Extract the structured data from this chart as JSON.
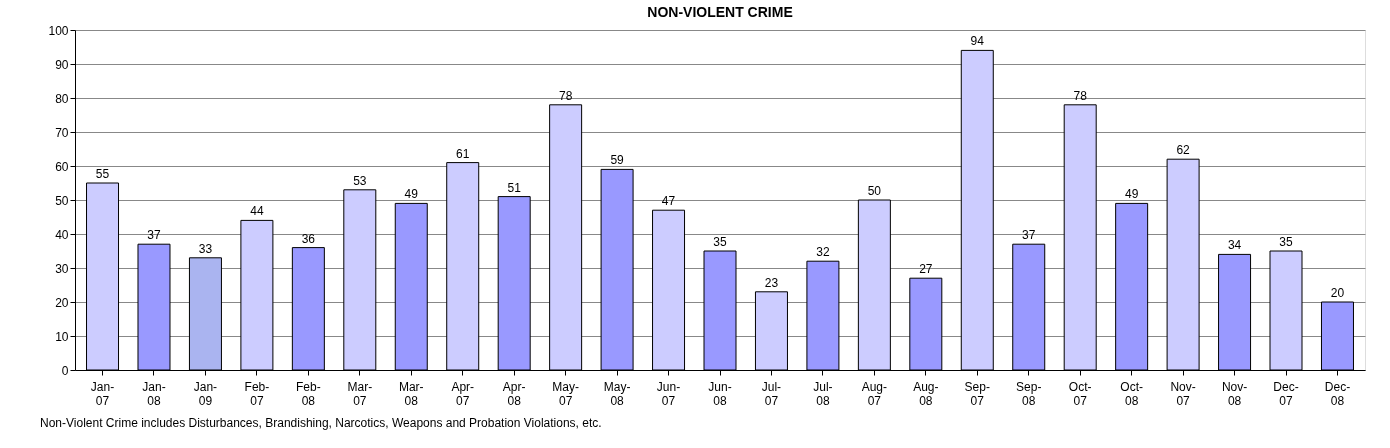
{
  "chart_data": {
    "type": "bar",
    "title": "NON-VIOLENT CRIME",
    "categories": [
      "Jan-07",
      "Jan-08",
      "Jan-09",
      "Feb-07",
      "Feb-08",
      "Mar-07",
      "Mar-08",
      "Apr-07",
      "Apr-08",
      "May-07",
      "May-08",
      "Jun-07",
      "Jun-08",
      "Jul-07",
      "Jul-08",
      "Aug-07",
      "Aug-08",
      "Sep-07",
      "Sep-08",
      "Oct-07",
      "Oct-08",
      "Nov-07",
      "Nov-08",
      "Dec-07",
      "Dec-08"
    ],
    "values": [
      55,
      37,
      33,
      44,
      36,
      53,
      49,
      61,
      51,
      78,
      59,
      47,
      35,
      23,
      32,
      50,
      27,
      94,
      37,
      78,
      49,
      62,
      34,
      35,
      20
    ],
    "colors": [
      "#ccccff",
      "#9999ff",
      "#aab4f0",
      "#ccccff",
      "#9999ff",
      "#ccccff",
      "#9999ff",
      "#ccccff",
      "#9999ff",
      "#ccccff",
      "#9999ff",
      "#ccccff",
      "#9999ff",
      "#ccccff",
      "#9999ff",
      "#ccccff",
      "#9999ff",
      "#ccccff",
      "#9999ff",
      "#ccccff",
      "#9999ff",
      "#ccccff",
      "#9999ff",
      "#ccccff",
      "#9999ff"
    ],
    "ylim": [
      0,
      100
    ],
    "yticks": [
      0,
      10,
      20,
      30,
      40,
      50,
      60,
      70,
      80,
      90,
      100
    ],
    "grid": "y",
    "data_labels": true,
    "legend": false,
    "annotations": [
      "Non-Violent Crime includes Disturbances, Brandishing, Narcotics, Weapons and Probation Violations, etc."
    ]
  }
}
